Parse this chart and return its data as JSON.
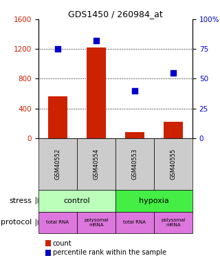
{
  "title": "GDS1450 / 260984_at",
  "samples": [
    "GSM40552",
    "GSM40554",
    "GSM40553",
    "GSM40555"
  ],
  "counts": [
    560,
    1220,
    80,
    220
  ],
  "percentiles": [
    75,
    82,
    40,
    55
  ],
  "ylim_left": [
    0,
    1600
  ],
  "ylim_right": [
    0,
    100
  ],
  "yticks_left": [
    0,
    400,
    800,
    1200,
    1600
  ],
  "yticks_right": [
    0,
    25,
    50,
    75,
    100
  ],
  "ytick_labels_right": [
    "0",
    "25",
    "50",
    "75",
    "100%"
  ],
  "bar_color": "#cc2200",
  "dot_color": "#0000cc",
  "stress_labels": [
    "control",
    "hypoxia"
  ],
  "stress_colors": [
    "#bbffbb",
    "#44ee44"
  ],
  "protocol_labels": [
    "total RNA",
    "polysomal\nmRNA",
    "total RNA",
    "polysomal\nmRNA"
  ],
  "protocol_color": "#dd77dd",
  "sample_bg": "#cccccc",
  "legend_count": "count",
  "legend_percentile": "percentile rank within the sample"
}
